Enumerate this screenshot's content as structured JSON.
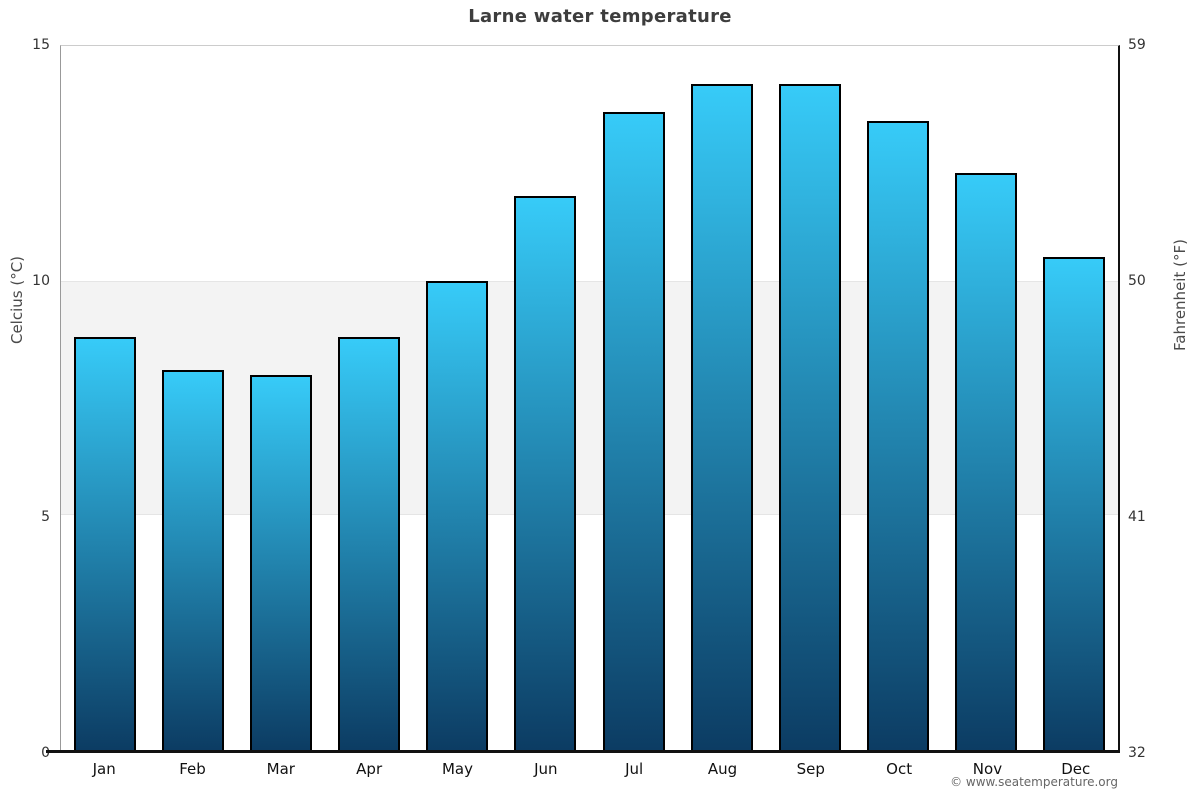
{
  "title": "Larne water temperature",
  "watermark": "© www.seatemperature.org",
  "colors": {
    "bar_top": "#37cbf8",
    "bar_bottom": "#0c3c63",
    "bar_border": "#000000",
    "band_fill": "#f3f3f3",
    "band_edge": "#e5e5e5",
    "axis_dark": "#111111",
    "spine_left": "#999999",
    "spine_top": "#cccccc",
    "title_color": "#3d3d3d"
  },
  "chart_data": {
    "type": "bar",
    "title": "Larne water temperature",
    "categories": [
      "Jan",
      "Feb",
      "Mar",
      "Apr",
      "May",
      "Jun",
      "Jul",
      "Aug",
      "Sep",
      "Oct",
      "Nov",
      "Dec"
    ],
    "values": [
      8.8,
      8.1,
      8.0,
      8.8,
      10.0,
      11.8,
      13.6,
      14.2,
      14.2,
      13.4,
      12.3,
      10.5
    ],
    "xlabel": "",
    "ylabel_left": "Celcius (°C)",
    "ylabel_right": "Fahrenheit (°F)",
    "ylim": [
      0,
      15
    ],
    "ylim_right": [
      32,
      59
    ],
    "yticks_left": [
      0,
      5,
      10,
      15
    ],
    "yticks_right": [
      32,
      41,
      50,
      59
    ],
    "band": {
      "from": 5,
      "to": 10
    },
    "legend": false,
    "grid": "shaded-band-5-10"
  }
}
